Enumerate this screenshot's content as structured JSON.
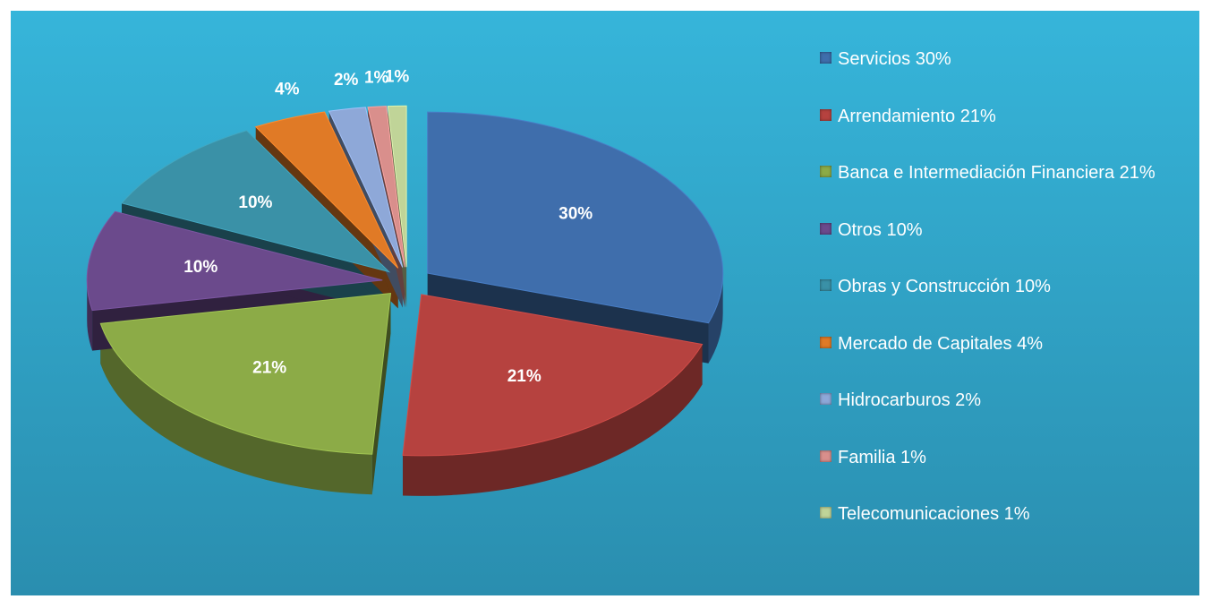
{
  "chart_data": {
    "type": "pie",
    "categories": [
      "Servicios 30%",
      "Arrendamiento 21%",
      "Banca e Intermediación Financiera 21%",
      "Otros 10%",
      "Obras y Construcción 10%",
      "Mercado de Capitales 4%",
      "Hidrocarburos 2%",
      "Familia 1%",
      "Telecomunicaciones 1%"
    ],
    "values": [
      30,
      21,
      21,
      10,
      10,
      4,
      2,
      1,
      1
    ],
    "value_labels": [
      "30%",
      "21%",
      "21%",
      "10%",
      "10%",
      "4%",
      "2%",
      "1%",
      "1%"
    ],
    "colors": [
      "#3f6eac",
      "#b6423f",
      "#8cab47",
      "#6b4a8c",
      "#3a91a7",
      "#e07a26",
      "#8ea8d8",
      "#d98f8c",
      "#c0d498"
    ],
    "legend": "right"
  }
}
